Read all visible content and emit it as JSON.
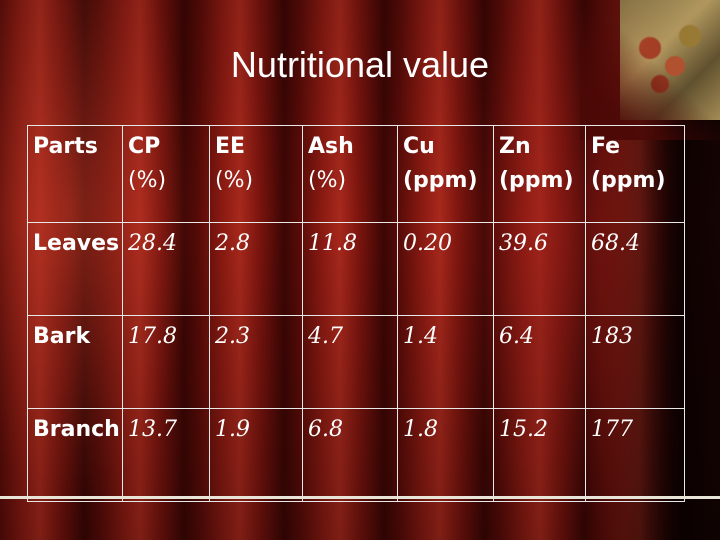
{
  "title": "Nutritional value",
  "table": {
    "headers": [
      {
        "line1": "Parts",
        "line2": ""
      },
      {
        "line1": "CP",
        "line2": "(%)"
      },
      {
        "line1": "EE",
        "line2": "(%)"
      },
      {
        "line1": "Ash",
        "line2": "(%)"
      },
      {
        "line1": "Cu",
        "line2": "(ppm)"
      },
      {
        "line1": "Zn",
        "line2": "(ppm)"
      },
      {
        "line1": "Fe",
        "line2": "(ppm)"
      }
    ],
    "rows": [
      {
        "part": "Leaves",
        "values": [
          "28.4",
          "2.8",
          "11.8",
          "0.20",
          "39.6",
          "68.4"
        ]
      },
      {
        "part": "Bark",
        "values": [
          "17.8",
          "2.3",
          "4.7",
          "1.4",
          "6.4",
          "183"
        ]
      },
      {
        "part": "Branch",
        "values": [
          "13.7",
          "1.9",
          "6.8",
          "1.8",
          "15.2",
          "177"
        ]
      }
    ]
  },
  "colors": {
    "background": "#7a140e",
    "text": "#ffffff",
    "grid": "#e8e8e8"
  }
}
